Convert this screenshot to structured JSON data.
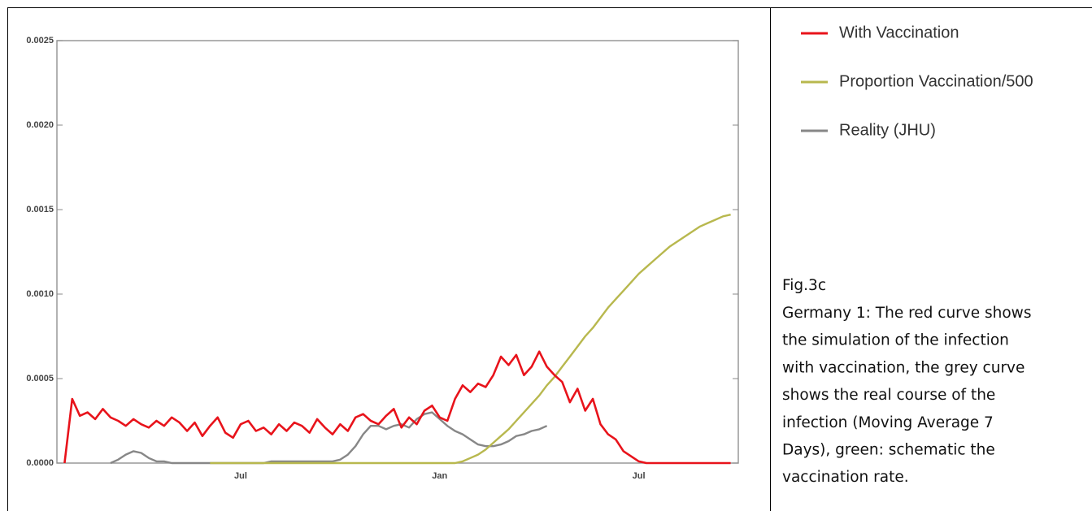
{
  "chart_data": {
    "type": "line",
    "categories": [
      null,
      null,
      null,
      null,
      null,
      null,
      null,
      null,
      null,
      null,
      null,
      null,
      null,
      null,
      null,
      null,
      null,
      null,
      null,
      null,
      null,
      null,
      null,
      null,
      "Jul",
      null,
      null,
      null,
      null,
      null,
      null,
      null,
      null,
      null,
      null,
      null,
      null,
      null,
      null,
      null,
      null,
      null,
      null,
      null,
      null,
      null,
      null,
      null,
      null,
      null,
      "Jan",
      null,
      null,
      null,
      null,
      null,
      null,
      null,
      null,
      null,
      null,
      null,
      null,
      null,
      null,
      null,
      null,
      null,
      null,
      null,
      null,
      null,
      null,
      null,
      null,
      null,
      "Jul",
      null,
      null,
      null,
      null,
      null,
      null,
      null,
      null,
      null,
      null,
      null,
      null,
      null
    ],
    "series": [
      {
        "name": "With Vaccination",
        "color": "#e8131b",
        "values": [
          null,
          0,
          0.00038,
          0.00028,
          0.0003,
          0.00026,
          0.00032,
          0.00027,
          0.00025,
          0.00022,
          0.00026,
          0.00023,
          0.00021,
          0.00025,
          0.00022,
          0.00027,
          0.00024,
          0.00019,
          0.00024,
          0.00016,
          0.00022,
          0.00027,
          0.00018,
          0.00015,
          0.00023,
          0.00025,
          0.00019,
          0.00021,
          0.00017,
          0.00023,
          0.00019,
          0.00024,
          0.00022,
          0.00018,
          0.00026,
          0.00021,
          0.00017,
          0.00023,
          0.00019,
          0.00027,
          0.00029,
          0.00025,
          0.00023,
          0.00028,
          0.00032,
          0.00021,
          0.00027,
          0.00023,
          0.00031,
          0.00034,
          0.00027,
          0.00025,
          0.00038,
          0.00046,
          0.00042,
          0.00047,
          0.00045,
          0.00052,
          0.00063,
          0.00058,
          0.00064,
          0.00052,
          0.00057,
          0.00066,
          0.00057,
          0.00052,
          0.00048,
          0.00036,
          0.00044,
          0.00031,
          0.00038,
          0.00023,
          0.00017,
          0.00014,
          7e-05,
          4e-05,
          1e-05,
          0,
          0,
          0,
          0,
          0,
          0,
          0,
          0,
          0,
          0,
          0,
          0,
          null
        ]
      },
      {
        "name": "Proportion Vaccination/500",
        "color": "#b8b84e",
        "values": [
          null,
          null,
          null,
          null,
          null,
          null,
          null,
          null,
          null,
          null,
          null,
          null,
          null,
          null,
          null,
          null,
          null,
          null,
          null,
          null,
          0,
          0,
          0,
          0,
          0,
          0,
          0,
          0,
          0,
          0,
          0,
          0,
          0,
          0,
          0,
          0,
          0,
          0,
          0,
          0,
          0,
          0,
          0,
          0,
          0,
          0,
          0,
          0,
          0,
          0,
          0,
          0,
          0,
          1e-05,
          3e-05,
          5e-05,
          8e-05,
          0.00012,
          0.00016,
          0.0002,
          0.00025,
          0.0003,
          0.00035,
          0.0004,
          0.00046,
          0.00051,
          0.00057,
          0.00063,
          0.00069,
          0.00075,
          0.0008,
          0.00086,
          0.00092,
          0.00097,
          0.00102,
          0.00107,
          0.00112,
          0.00116,
          0.0012,
          0.00124,
          0.00128,
          0.00131,
          0.00134,
          0.00137,
          0.0014,
          0.00142,
          0.00144,
          0.00146,
          0.00147,
          null
        ]
      },
      {
        "name": "Reality (JHU)",
        "color": "#878787",
        "values": [
          null,
          null,
          null,
          null,
          null,
          null,
          null,
          0,
          2e-05,
          5e-05,
          7e-05,
          6e-05,
          3e-05,
          1e-05,
          1e-05,
          0,
          0,
          0,
          0,
          0,
          0,
          0,
          0,
          0,
          0,
          0,
          0,
          0,
          1e-05,
          1e-05,
          1e-05,
          1e-05,
          1e-05,
          1e-05,
          1e-05,
          1e-05,
          1e-05,
          2e-05,
          5e-05,
          0.0001,
          0.00017,
          0.00022,
          0.00022,
          0.0002,
          0.00022,
          0.00023,
          0.00021,
          0.00026,
          0.00029,
          0.0003,
          0.00026,
          0.00022,
          0.00019,
          0.00017,
          0.00014,
          0.00011,
          0.0001,
          0.0001,
          0.00011,
          0.00013,
          0.00016,
          0.00017,
          0.00019,
          0.0002,
          0.00022,
          null,
          null,
          null,
          null,
          null,
          null,
          null,
          null,
          null,
          null,
          null,
          null,
          null,
          null,
          null,
          null,
          null,
          null,
          null,
          null,
          null,
          null,
          null,
          null,
          null
        ]
      }
    ],
    "ylim": [
      0,
      0.0025
    ],
    "yticks": [
      {
        "value": 0,
        "label": "0.0000"
      },
      0.0005,
      {
        "value": 0.001,
        "label": "0.0010"
      },
      0.0015,
      {
        "value": 0.002,
        "label": "0.0020"
      },
      0.0025
    ]
  },
  "caption": {
    "label": "Fig.3c",
    "lines": [
      "Germany 1: The red curve shows",
      "the simulation of the infection",
      "with vaccination, the grey curve",
      "shows the real course of the",
      "infection (Moving Average 7",
      "Days), green: schematic the",
      "vaccination rate."
    ]
  }
}
